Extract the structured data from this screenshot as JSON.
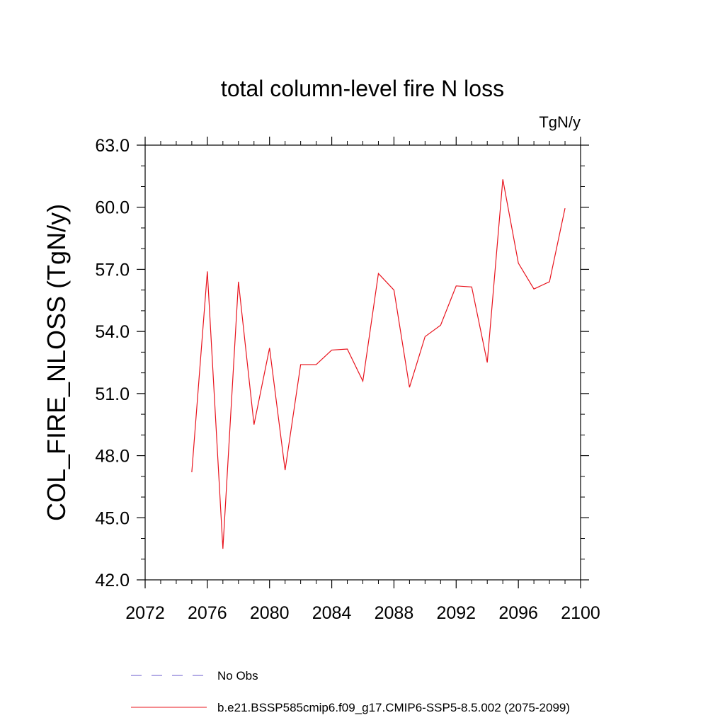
{
  "chart_data": {
    "type": "line",
    "title": "total column-level fire N loss",
    "units": "TgN/y",
    "xlabel": "",
    "ylabel": "COL_FIRE_NLOSS  (TgN/y)",
    "xlim": [
      2072,
      2100
    ],
    "ylim": [
      42.0,
      63.0
    ],
    "x_ticks": [
      "2072",
      "2076",
      "2080",
      "2084",
      "2088",
      "2092",
      "2096",
      "2100"
    ],
    "y_ticks": [
      "42.0",
      "45.0",
      "48.0",
      "51.0",
      "54.0",
      "57.0",
      "60.0",
      "63.0"
    ],
    "grid": false,
    "legend_position": "bottom",
    "series": [
      {
        "name": "b.e21.BSSP585cmip6.f09_g17.CMIP6-SSP5-8.5.002 (2075-2099)",
        "color": "#e8141e",
        "x": [
          2075,
          2076,
          2077,
          2078,
          2079,
          2080,
          2081,
          2082,
          2083,
          2084,
          2085,
          2086,
          2087,
          2088,
          2089,
          2090,
          2091,
          2092,
          2093,
          2094,
          2095,
          2096,
          2097,
          2098,
          2099
        ],
        "values": [
          47.2,
          56.9,
          43.5,
          56.4,
          49.5,
          53.2,
          47.3,
          52.4,
          52.4,
          53.1,
          53.15,
          51.6,
          56.8,
          56.0,
          51.3,
          53.75,
          54.3,
          56.2,
          56.15,
          52.5,
          61.35,
          57.3,
          56.05,
          56.4,
          59.95
        ]
      }
    ],
    "legend": [
      {
        "label": "No Obs",
        "color": "#6a5acd",
        "dash": "dashed"
      },
      {
        "label": "b.e21.BSSP585cmip6.f09_g17.CMIP6-SSP5-8.5.002 (2075-2099)",
        "color": "#e8141e",
        "dash": "solid"
      }
    ]
  }
}
